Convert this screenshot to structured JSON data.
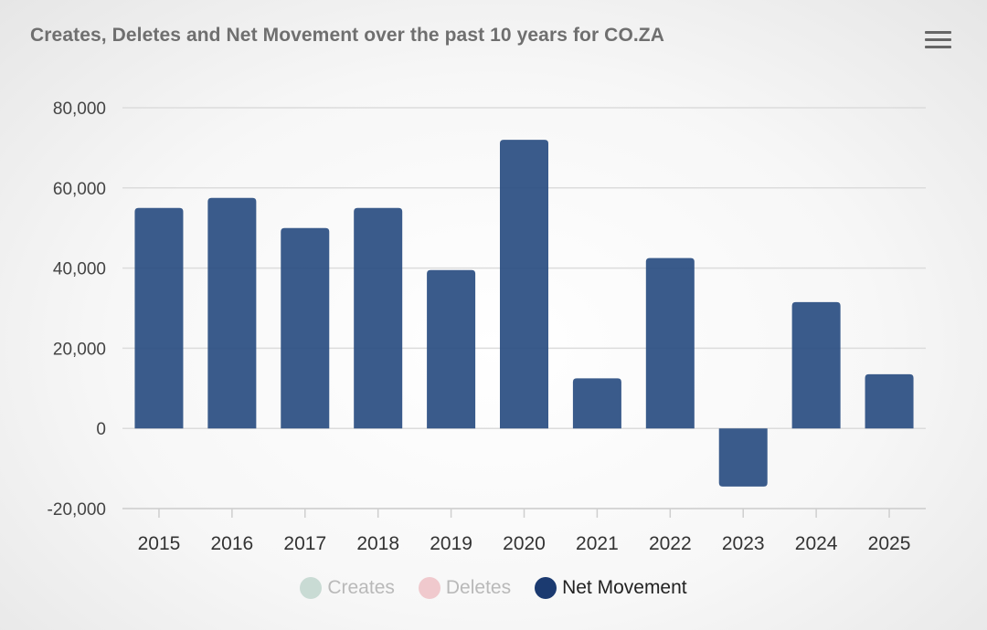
{
  "title": "Creates, Deletes and Net Movement over the past 10 years for CO.ZA",
  "menu_icon": "hamburger-icon",
  "chart_data": {
    "type": "bar",
    "title": "Creates, Deletes and Net Movement over the past 10 years for CO.ZA",
    "xlabel": "",
    "ylabel": "",
    "categories": [
      "2015",
      "2016",
      "2017",
      "2018",
      "2019",
      "2020",
      "2021",
      "2022",
      "2023",
      "2024",
      "2025"
    ],
    "series": [
      {
        "name": "Net Movement",
        "color": "#2b4f82",
        "values": [
          55000,
          57500,
          50000,
          55000,
          39500,
          72000,
          12500,
          42500,
          -14500,
          31500,
          13500
        ]
      }
    ],
    "ylim": [
      -20000,
      80000
    ],
    "yticks": [
      80000,
      60000,
      40000,
      20000,
      0,
      -20000
    ],
    "ytick_labels": [
      "80,000",
      "60,000",
      "40,000",
      "20,000",
      "0",
      "-20,000"
    ],
    "grid": true,
    "legend": [
      {
        "label": "Creates",
        "color": "#c9dbd4",
        "state": "hidden"
      },
      {
        "label": "Deletes",
        "color": "#f0c9cd",
        "state": "hidden"
      },
      {
        "label": "Net Movement",
        "color": "#1b3a70",
        "state": "active"
      }
    ],
    "legend_position": "bottom"
  }
}
